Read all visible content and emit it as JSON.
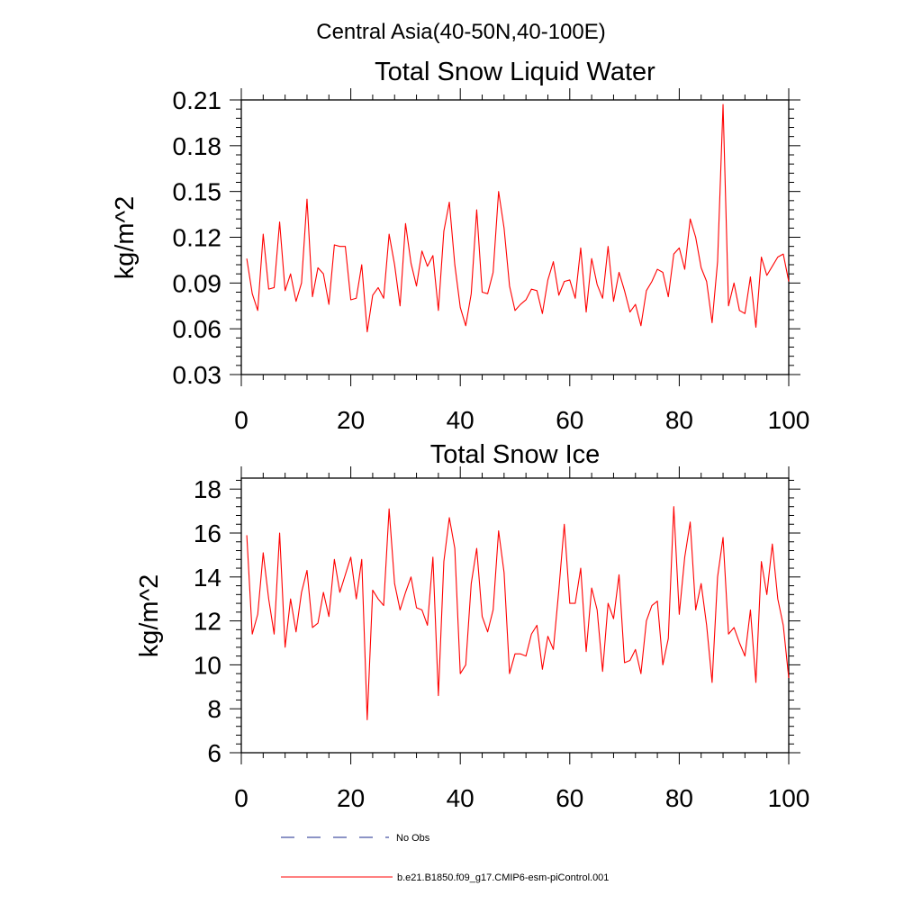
{
  "figure": {
    "title": "Central Asia(40-50N,40-100E)"
  },
  "legend": {
    "placement": "bottom-left",
    "entries": [
      {
        "label": "No Obs",
        "style": "dashed",
        "color": "#1a2a8c"
      },
      {
        "label": "b.e21.B1850.f09_g17.CMIP6-esm-piControl.001",
        "style": "solid",
        "color": "#ff0000"
      }
    ]
  },
  "chart_data": [
    {
      "type": "line",
      "title": "Total Snow Liquid Water",
      "xlabel": "",
      "ylabel": "kg/m^2",
      "xlim": [
        0,
        100
      ],
      "ylim": [
        0.03,
        0.21
      ],
      "xticks": [
        0,
        20,
        40,
        60,
        80,
        100
      ],
      "yticks": [
        0.03,
        0.06,
        0.09,
        0.12,
        0.15,
        0.18,
        0.21
      ],
      "ytick_labels": [
        "0.03",
        "0.06",
        "0.09",
        "0.12",
        "0.15",
        "0.18",
        "0.21"
      ],
      "grid": false,
      "series": [
        {
          "color": "#ff0000",
          "x_start": 1,
          "x_step": 1,
          "values": [
            0.106,
            0.083,
            0.072,
            0.122,
            0.086,
            0.087,
            0.13,
            0.085,
            0.096,
            0.078,
            0.09,
            0.145,
            0.081,
            0.1,
            0.096,
            0.076,
            0.115,
            0.114,
            0.114,
            0.079,
            0.08,
            0.102,
            0.058,
            0.082,
            0.087,
            0.08,
            0.122,
            0.102,
            0.075,
            0.129,
            0.103,
            0.088,
            0.111,
            0.101,
            0.108,
            0.072,
            0.124,
            0.143,
            0.102,
            0.074,
            0.062,
            0.083,
            0.138,
            0.084,
            0.083,
            0.097,
            0.15,
            0.126,
            0.088,
            0.072,
            0.076,
            0.079,
            0.086,
            0.085,
            0.07,
            0.092,
            0.104,
            0.082,
            0.091,
            0.092,
            0.08,
            0.113,
            0.071,
            0.106,
            0.089,
            0.08,
            0.114,
            0.078,
            0.097,
            0.085,
            0.071,
            0.076,
            0.062,
            0.085,
            0.091,
            0.099,
            0.097,
            0.081,
            0.109,
            0.113,
            0.099,
            0.132,
            0.12,
            0.1,
            0.091,
            0.064,
            0.104,
            0.207,
            0.075,
            0.09,
            0.072,
            0.07,
            0.094,
            0.061,
            0.107,
            0.095,
            0.101,
            0.107,
            0.109,
            0.091
          ]
        }
      ]
    },
    {
      "type": "line",
      "title": "Total Snow Ice",
      "xlabel": "",
      "ylabel": "kg/m^2",
      "xlim": [
        0,
        100
      ],
      "ylim": [
        6,
        18.5
      ],
      "xticks": [
        0,
        20,
        40,
        60,
        80,
        100
      ],
      "yticks": [
        6,
        8,
        10,
        12,
        14,
        16,
        18
      ],
      "ytick_labels": [
        "6",
        "8",
        "10",
        "12",
        "14",
        "16",
        "18"
      ],
      "grid": false,
      "series": [
        {
          "color": "#ff0000",
          "x_start": 1,
          "x_step": 1,
          "values": [
            15.9,
            11.4,
            12.3,
            15.1,
            13.0,
            11.4,
            16.0,
            10.8,
            13.0,
            11.5,
            13.3,
            14.3,
            11.7,
            11.9,
            13.3,
            12.2,
            14.8,
            13.3,
            14.1,
            14.9,
            13.0,
            14.8,
            7.5,
            13.4,
            13.0,
            12.7,
            17.1,
            13.7,
            12.5,
            13.3,
            14.0,
            12.6,
            12.5,
            11.8,
            14.9,
            8.6,
            14.7,
            16.7,
            15.3,
            9.6,
            10.0,
            13.7,
            15.3,
            12.2,
            11.5,
            12.5,
            16.1,
            14.2,
            9.6,
            10.5,
            10.5,
            10.4,
            11.4,
            11.8,
            9.8,
            11.3,
            10.7,
            13.4,
            16.4,
            12.8,
            12.8,
            14.4,
            10.6,
            13.5,
            12.5,
            9.7,
            12.8,
            12.1,
            14.1,
            10.1,
            10.2,
            10.7,
            9.6,
            12.0,
            12.7,
            12.9,
            10.0,
            11.2,
            17.2,
            12.3,
            14.9,
            16.5,
            12.5,
            13.7,
            11.8,
            9.2,
            14.0,
            15.8,
            11.4,
            11.7,
            11.0,
            10.4,
            12.5,
            9.2,
            14.7,
            13.2,
            15.5,
            13.0,
            11.8,
            9.4
          ]
        }
      ]
    }
  ]
}
